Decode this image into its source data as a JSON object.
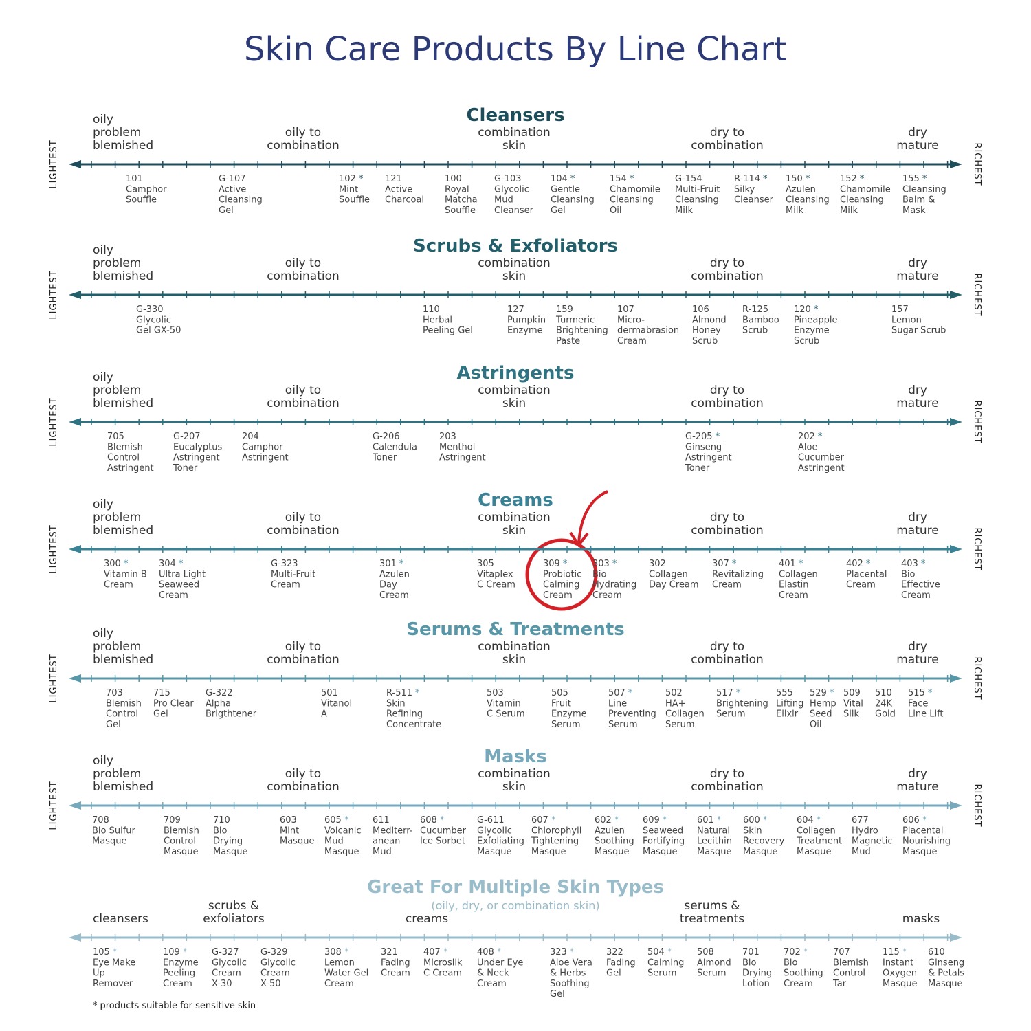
{
  "title": "Skin Care Products By Line Chart",
  "axis_labels": {
    "left": "LIGHTEST",
    "right": "RICHEST"
  },
  "footnote": {
    "mark": "*",
    "text": "products suitable for sensitive skin"
  },
  "sections": [
    {
      "title": "Cleansers",
      "color": "#1d4d5a",
      "axis_ends": true,
      "zones": [
        [
          "oily",
          "problem",
          "blemished"
        ],
        [
          "oily to",
          "combination"
        ],
        [
          "combination",
          "skin"
        ],
        [
          "dry to",
          "combination"
        ],
        [
          "dry",
          "mature"
        ]
      ],
      "products": [
        {
          "code": "101",
          "name": [
            "Camphor",
            "Souffle"
          ]
        },
        {
          "code": "G-107",
          "name": [
            "Active",
            "Cleansing",
            "Gel"
          ]
        },
        {
          "code": "102",
          "sensitive": true,
          "name": [
            "Mint",
            "Souffle"
          ]
        },
        {
          "code": "121",
          "name": [
            "Active",
            "Charcoal"
          ]
        },
        {
          "code": "100",
          "name": [
            "Royal",
            "Matcha",
            "Souffle"
          ]
        },
        {
          "code": "G-103",
          "name": [
            "Glycolic",
            "Mud",
            "Cleanser"
          ]
        },
        {
          "code": "104",
          "sensitive": true,
          "name": [
            "Gentle",
            "Cleansing",
            "Gel"
          ]
        },
        {
          "code": "154",
          "sensitive": true,
          "name": [
            "Chamomile",
            "Cleansing",
            "Oil"
          ]
        },
        {
          "code": "G-154",
          "name": [
            "Multi-Fruit",
            "Cleansing",
            "Milk"
          ]
        },
        {
          "code": "R-114",
          "sensitive": true,
          "name": [
            "Silky",
            "Cleanser"
          ]
        },
        {
          "code": "150",
          "sensitive": true,
          "name": [
            "Azulen",
            "Cleansing",
            "Milk"
          ]
        },
        {
          "code": "152",
          "sensitive": true,
          "name": [
            "Chamomile",
            "Cleansing",
            "Milk"
          ]
        },
        {
          "code": "155",
          "sensitive": true,
          "name": [
            "Cleansing",
            "Balm &",
            "Mask"
          ]
        }
      ]
    },
    {
      "title": "Scrubs & Exfoliators",
      "color": "#235f6b",
      "axis_ends": true,
      "zones": [
        [
          "oily",
          "problem",
          "blemished"
        ],
        [
          "oily to",
          "combination"
        ],
        [
          "combination",
          "skin"
        ],
        [
          "dry to",
          "combination"
        ],
        [
          "dry",
          "mature"
        ]
      ],
      "products": [
        {
          "code": "G-330",
          "name": [
            "Glycolic",
            "Gel GX-50"
          ]
        },
        {
          "code": "110",
          "name": [
            "Herbal",
            "Peeling Gel"
          ]
        },
        {
          "code": "127",
          "name": [
            "Pumpkin",
            "Enzyme"
          ]
        },
        {
          "code": "159",
          "name": [
            "Turmeric",
            "Brightening",
            "Paste"
          ]
        },
        {
          "code": "107",
          "name": [
            "Micro-",
            "dermabrasion",
            "Cream"
          ]
        },
        {
          "code": "106",
          "name": [
            "Almond",
            "Honey",
            "Scrub"
          ]
        },
        {
          "code": "R-125",
          "name": [
            "Bamboo",
            "Scrub"
          ]
        },
        {
          "code": "120",
          "sensitive": true,
          "name": [
            "Pineapple",
            "Enzyme",
            "Scrub"
          ]
        },
        {
          "code": "157",
          "name": [
            "Lemon",
            "Sugar Scrub"
          ]
        }
      ]
    },
    {
      "title": "Astringents",
      "color": "#2f7282",
      "axis_ends": true,
      "zones": [
        [
          "oily",
          "problem",
          "blemished"
        ],
        [
          "oily to",
          "combination"
        ],
        [
          "combination",
          "skin"
        ],
        [
          "dry to",
          "combination"
        ],
        [
          "dry",
          "mature"
        ]
      ],
      "products": [
        {
          "code": "705",
          "name": [
            "Blemish",
            "Control",
            "Astringent"
          ]
        },
        {
          "code": "G-207",
          "name": [
            "Eucalyptus",
            "Astringent",
            "Toner"
          ]
        },
        {
          "code": "204",
          "name": [
            "Camphor",
            "Astringent"
          ]
        },
        {
          "code": "G-206",
          "name": [
            "Calendula",
            "Toner"
          ]
        },
        {
          "code": "203",
          "name": [
            "Menthol",
            "Astringent"
          ]
        },
        {
          "code": "G-205",
          "sensitive": true,
          "name": [
            "Ginseng",
            "Astringent",
            "Toner"
          ]
        },
        {
          "code": "202",
          "sensitive": true,
          "name": [
            "Aloe",
            "Cucumber",
            "Astringent"
          ]
        }
      ]
    },
    {
      "title": "Creams",
      "color": "#3a8295",
      "axis_ends": true,
      "zones": [
        [
          "oily",
          "problem",
          "blemished"
        ],
        [
          "oily to",
          "combination"
        ],
        [
          "combination",
          "skin"
        ],
        [
          "dry to",
          "combination"
        ],
        [
          "dry",
          "mature"
        ]
      ],
      "products": [
        {
          "code": "300",
          "sensitive": true,
          "name": [
            "Vitamin B",
            "Cream"
          ]
        },
        {
          "code": "304",
          "sensitive": true,
          "name": [
            "Ultra Light",
            "Seaweed",
            "Cream"
          ]
        },
        {
          "code": "G-323",
          "name": [
            "Multi-Fruit",
            "Cream"
          ]
        },
        {
          "code": "301",
          "sensitive": true,
          "name": [
            "Azulen",
            "Day",
            "Cream"
          ]
        },
        {
          "code": "305",
          "name": [
            "Vitaplex",
            "C Cream"
          ]
        },
        {
          "code": "309",
          "sensitive": true,
          "name": [
            "Probiotic",
            "Calming",
            "Cream"
          ]
        },
        {
          "code": "303",
          "sensitive": true,
          "name": [
            "Bio",
            "Hydrating",
            "Cream"
          ]
        },
        {
          "code": "302",
          "name": [
            "Collagen",
            "Day Cream"
          ]
        },
        {
          "code": "307",
          "sensitive": true,
          "name": [
            "Revitalizing",
            "Cream"
          ]
        },
        {
          "code": "401",
          "sensitive": true,
          "name": [
            "Collagen",
            "Elastin",
            "Cream"
          ]
        },
        {
          "code": "402",
          "sensitive": true,
          "name": [
            "Placental",
            "Cream"
          ]
        },
        {
          "code": "403",
          "sensitive": true,
          "name": [
            "Bio",
            "Effective",
            "Cream"
          ]
        }
      ]
    },
    {
      "title": "Serums & Treatments",
      "color": "#5797a8",
      "axis_ends": true,
      "zones": [
        [
          "oily",
          "problem",
          "blemished"
        ],
        [
          "oily to",
          "combination"
        ],
        [
          "combination",
          "skin"
        ],
        [
          "dry to",
          "combination"
        ],
        [
          "dry",
          "mature"
        ]
      ],
      "products": [
        {
          "code": "703",
          "name": [
            "Blemish",
            "Control",
            "Gel"
          ]
        },
        {
          "code": "715",
          "name": [
            "Pro Clear",
            "Gel"
          ]
        },
        {
          "code": "G-322",
          "name": [
            "Alpha",
            "Brigthtener"
          ]
        },
        {
          "code": "501",
          "name": [
            "Vitanol",
            "A"
          ]
        },
        {
          "code": "R-511",
          "sensitive": true,
          "name": [
            "Skin",
            "Refining",
            "Concentrate"
          ]
        },
        {
          "code": "503",
          "name": [
            "Vitamin",
            "C Serum"
          ]
        },
        {
          "code": "505",
          "name": [
            "Fruit",
            "Enzyme",
            "Serum"
          ]
        },
        {
          "code": "507",
          "sensitive": true,
          "name": [
            "Line",
            "Preventing",
            "Serum"
          ]
        },
        {
          "code": "502",
          "name": [
            "HA+",
            "Collagen",
            "Serum"
          ]
        },
        {
          "code": "517",
          "sensitive": true,
          "name": [
            "Brightening",
            "Serum"
          ]
        },
        {
          "code": "555",
          "name": [
            "Lifting",
            "Elixir"
          ]
        },
        {
          "code": "529",
          "sensitive": true,
          "name": [
            "Hemp",
            "Seed",
            "Oil"
          ]
        },
        {
          "code": "509",
          "name": [
            "Vital",
            "Silk"
          ]
        },
        {
          "code": "510",
          "name": [
            "24K",
            "Gold"
          ]
        },
        {
          "code": "515",
          "sensitive": true,
          "name": [
            "Face",
            "Line Lift"
          ]
        }
      ]
    },
    {
      "title": "Masks",
      "color": "#76a9bc",
      "axis_ends": true,
      "zones": [
        [
          "oily",
          "problem",
          "blemished"
        ],
        [
          "oily to",
          "combination"
        ],
        [
          "combination",
          "skin"
        ],
        [
          "dry to",
          "combination"
        ],
        [
          "dry",
          "mature"
        ]
      ],
      "products": [
        {
          "code": "708",
          "name": [
            "Bio Sulfur",
            "Masque"
          ]
        },
        {
          "code": "709",
          "name": [
            "Blemish",
            "Control",
            "Masque"
          ]
        },
        {
          "code": "710",
          "name": [
            "Bio",
            "Drying",
            "Masque"
          ]
        },
        {
          "code": "603",
          "name": [
            "Mint",
            "Masque"
          ]
        },
        {
          "code": "605",
          "sensitive": true,
          "name": [
            "Volcanic",
            "Mud",
            "Masque"
          ]
        },
        {
          "code": "611",
          "name": [
            "Mediterr-",
            "anean",
            "Mud"
          ]
        },
        {
          "code": "608",
          "sensitive": true,
          "name": [
            "Cucumber",
            "Ice Sorbet"
          ]
        },
        {
          "code": "G-611",
          "name": [
            "Glycolic",
            "Exfoliating",
            "Masque"
          ]
        },
        {
          "code": "607",
          "sensitive": true,
          "name": [
            "Chlorophyll",
            "Tightening",
            "Masque"
          ]
        },
        {
          "code": "602",
          "sensitive": true,
          "name": [
            "Azulen",
            "Soothing",
            "Masque"
          ]
        },
        {
          "code": "609",
          "sensitive": true,
          "name": [
            "Seaweed",
            "Fortifying",
            "Masque"
          ]
        },
        {
          "code": "601",
          "sensitive": true,
          "name": [
            "Natural",
            "Lecithin",
            "Masque"
          ]
        },
        {
          "code": "600",
          "sensitive": true,
          "name": [
            "Skin",
            "Recovery",
            "Masque"
          ]
        },
        {
          "code": "604",
          "sensitive": true,
          "name": [
            "Collagen",
            "Treatment",
            "Masque"
          ]
        },
        {
          "code": "677",
          "name": [
            "Hydro",
            "Magnetic",
            "Mud"
          ]
        },
        {
          "code": "606",
          "sensitive": true,
          "name": [
            "Placental",
            "Nourishing",
            "Masque"
          ]
        }
      ]
    },
    {
      "title": "Great For Multiple Skin Types",
      "subtitle": "(oily, dry, or combination skin)",
      "color": "#99bccb",
      "axis_ends": false,
      "zones": [
        [
          "cleansers"
        ],
        [
          "scrubs &",
          "exfoliators"
        ],
        [
          "creams"
        ],
        [
          "serums &",
          "treatments"
        ],
        [
          "masks"
        ]
      ],
      "products": [
        {
          "code": "105",
          "sensitive": true,
          "name": [
            "Eye Make",
            "Up",
            "Remover"
          ]
        },
        {
          "code": "109",
          "sensitive": true,
          "name": [
            "Enzyme",
            "Peeling",
            "Cream"
          ]
        },
        {
          "code": "G-327",
          "name": [
            "Glycolic",
            "Cream",
            "X-30"
          ]
        },
        {
          "code": "G-329",
          "name": [
            "Glycolic",
            "Cream",
            "X-50"
          ]
        },
        {
          "code": "308",
          "sensitive": true,
          "name": [
            "Lemon",
            "Water Gel",
            "Cream"
          ]
        },
        {
          "code": "321",
          "name": [
            "Fading",
            "Cream"
          ]
        },
        {
          "code": "407",
          "sensitive": true,
          "name": [
            "Microsilk",
            "C Cream"
          ]
        },
        {
          "code": "408",
          "sensitive": true,
          "name": [
            "Under Eye",
            "& Neck",
            "Cream"
          ]
        },
        {
          "code": "323",
          "sensitive": true,
          "name": [
            "Aloe Vera",
            "& Herbs",
            "Soothing",
            "Gel"
          ]
        },
        {
          "code": "322",
          "name": [
            "Fading",
            "Gel"
          ]
        },
        {
          "code": "504",
          "sensitive": true,
          "name": [
            "Calming",
            "Serum"
          ]
        },
        {
          "code": "508",
          "name": [
            "Almond",
            "Serum"
          ]
        },
        {
          "code": "701",
          "name": [
            "Bio",
            "Drying",
            "Lotion"
          ]
        },
        {
          "code": "702",
          "sensitive": true,
          "name": [
            "Bio",
            "Soothing",
            "Cream"
          ]
        },
        {
          "code": "707",
          "name": [
            "Blemish",
            "Control",
            "Tar"
          ]
        },
        {
          "code": "115",
          "sensitive": true,
          "name": [
            "Instant",
            "Oxygen",
            "Masque"
          ]
        },
        {
          "code": "610",
          "name": [
            "Ginseng",
            "& Petals",
            "Masque"
          ]
        }
      ]
    }
  ]
}
